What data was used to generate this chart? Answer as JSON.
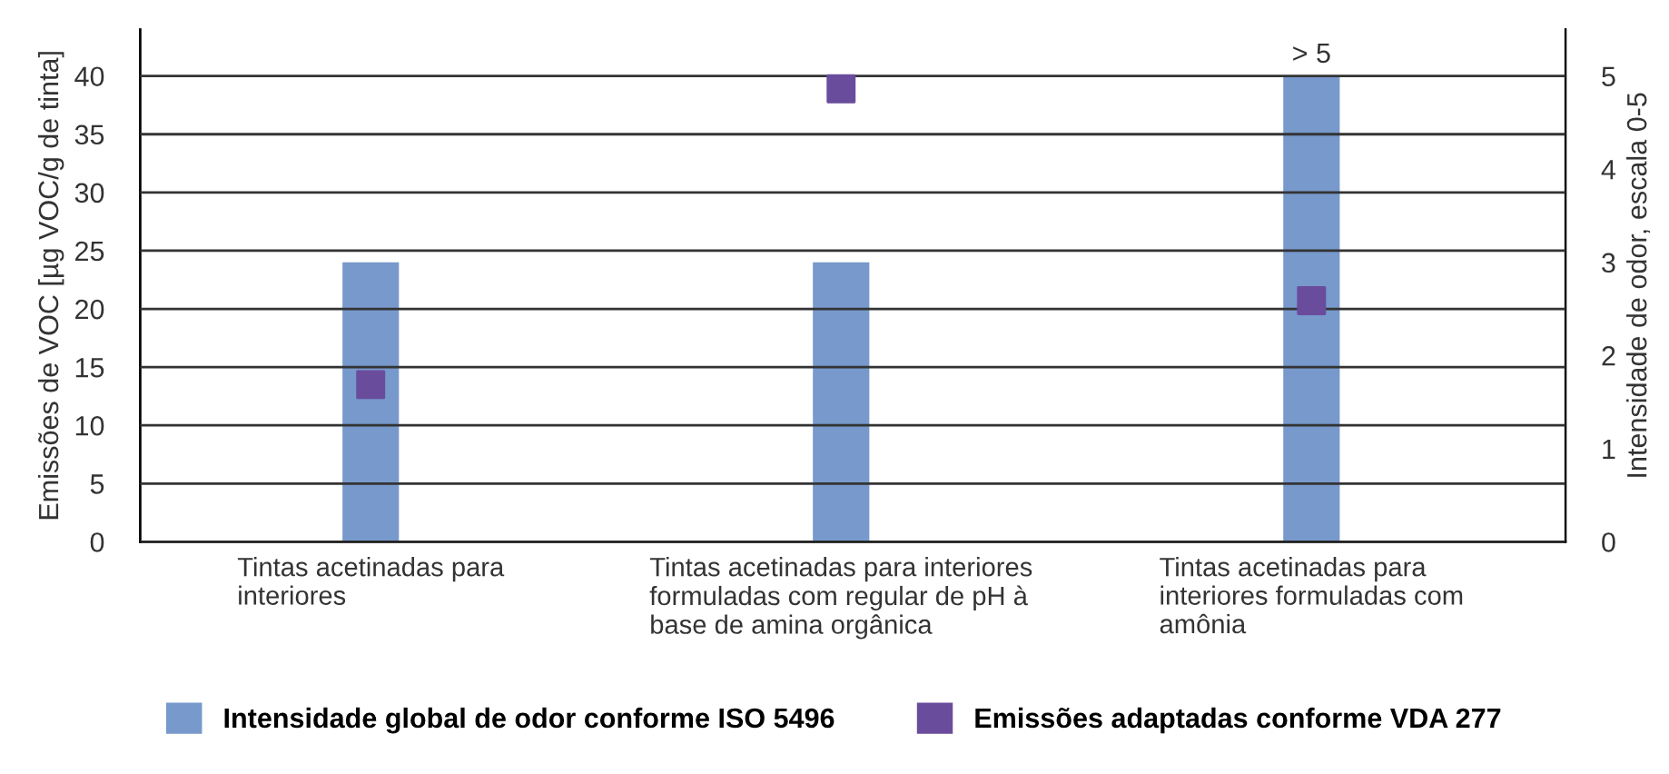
{
  "chart_data": {
    "type": "bar",
    "categories": [
      "Tintas acetinadas para\ninteriores",
      "Tintas acetinadas para interiores\nformuladas com regular de pH à\nbase de amina orgânica",
      "Tintas acetinadas para\ninteriores formuladas com\namônia"
    ],
    "series": [
      {
        "name": "Intensidade global de odor conforme ISO 5496",
        "axis": "y2",
        "color": "#7799cc",
        "values": [
          3,
          3,
          5
        ],
        "value_labels": [
          null,
          null,
          "> 5"
        ]
      },
      {
        "name": "Emissões adaptadas conforme VDA 277",
        "type": "scatter",
        "color": "#6a4c9c",
        "marker": "square",
        "values": [
          13.5,
          38.9,
          20.7
        ]
      }
    ],
    "ylabel": "Emissões de VOC [µg VOC/g de tinta]",
    "y2label": "Intensidade de odor, escala 0-5",
    "ylim": [
      0,
      44
    ],
    "yticks": [
      0,
      5,
      10,
      15,
      20,
      25,
      30,
      35,
      40
    ],
    "y2lim": [
      0,
      5.5
    ],
    "y2ticks": [
      0,
      1,
      2,
      3,
      4,
      5
    ],
    "grid": "y",
    "legend": "bottom"
  }
}
